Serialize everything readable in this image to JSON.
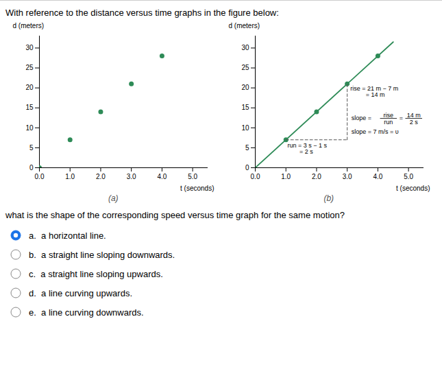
{
  "title": "With reference to the distance versus time graphs in the figure below:",
  "question": "what is the shape of the corresponding speed versus time graph for the same motion?",
  "options": [
    "a.  a horizontal line.",
    "b.  a straight line sloping downwards.",
    "c.  a straight line sloping upwards.",
    "d.  a line curving upwards.",
    "e.  a line curving downwards."
  ],
  "correct_option": 0,
  "selected_color": "#1a73e8",
  "bg_color": "#ffffff",
  "text_color": "#000000",
  "border_color": "#cccccc",
  "chart_data": [
    {
      "type": "scatter",
      "label": "(a)",
      "xlabel": "t (seconds)",
      "ylabel": "d (meters)",
      "xlim": [
        0,
        5.5
      ],
      "ylim": [
        0,
        33
      ],
      "xticks": [
        0,
        1,
        2,
        3,
        4,
        5
      ],
      "yticks": [
        0,
        5,
        10,
        15,
        20,
        25,
        30
      ],
      "x": [
        0,
        1,
        2,
        3,
        4
      ],
      "values": [
        0,
        7,
        14,
        21,
        28
      ],
      "color": "#2e8b57"
    },
    {
      "type": "line",
      "label": "(b)",
      "xlabel": "t (seconds)",
      "ylabel": "d (meters)",
      "xlim": [
        0,
        5.5
      ],
      "ylim": [
        0,
        33
      ],
      "xticks": [
        0,
        1,
        2,
        3,
        4,
        5
      ],
      "yticks": [
        0,
        5,
        10,
        15,
        20,
        25,
        30
      ],
      "series": [
        {
          "type": "line",
          "x": [
            0,
            4.5
          ],
          "values": [
            0,
            31.5
          ],
          "color": "#2e8b57"
        },
        {
          "type": "scatter",
          "x": [
            1,
            2,
            3,
            4
          ],
          "values": [
            7,
            14,
            21,
            28
          ],
          "color": "#2e8b57"
        },
        {
          "type": "line",
          "x": [
            1,
            3
          ],
          "values": [
            7,
            7
          ],
          "color": "#555555",
          "line_style": "dashed"
        },
        {
          "type": "line",
          "x": [
            3,
            3
          ],
          "values": [
            7,
            21
          ],
          "color": "#555555",
          "line_style": "dashed"
        }
      ],
      "annotations": [
        {
          "text": "rise = 21 m − 7 m\n         = 14 m",
          "x": 3.1,
          "y": 20.5
        },
        {
          "text": "run = 3 s − 1 s\n       = 2 s",
          "x": 1.05,
          "y": 6.2
        }
      ],
      "slope_fraction": {
        "lead": "slope =",
        "separator": "=",
        "fractions": [
          {
            "numerator": "rise",
            "denominator": "run"
          },
          {
            "numerator": "14 m",
            "denominator": "2 s"
          }
        ]
      },
      "slope_result": "slope = 7 m/s = υ"
    }
  ]
}
